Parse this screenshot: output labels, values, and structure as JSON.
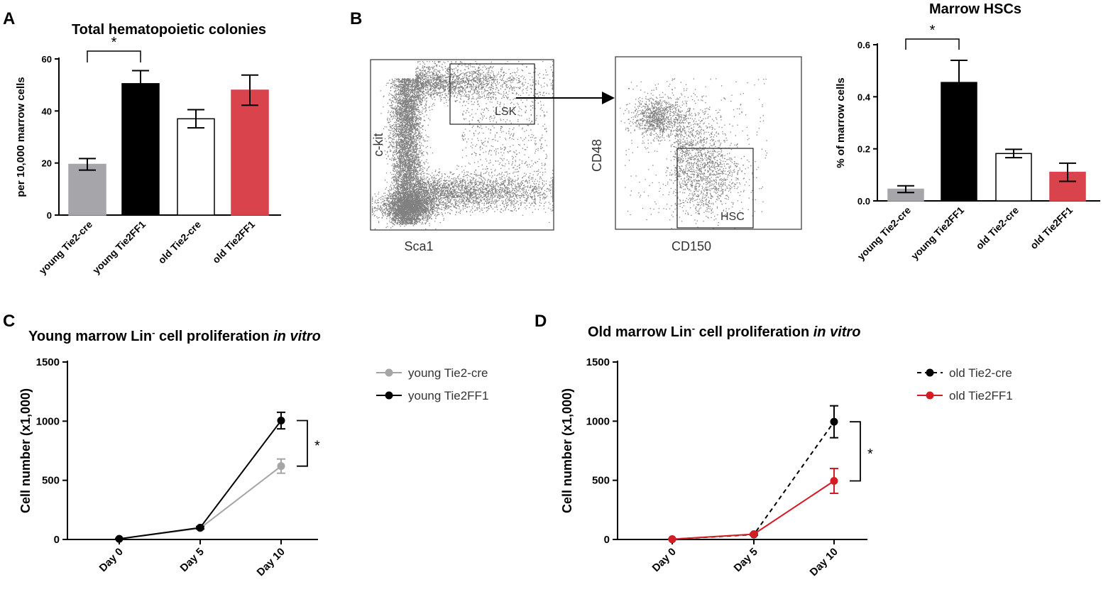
{
  "panels": {
    "a": {
      "letter": "A"
    },
    "b": {
      "letter": "B"
    },
    "c": {
      "letter": "C"
    },
    "d": {
      "letter": "D"
    }
  },
  "flow": {
    "plot1": {
      "ylabel": "c-kit",
      "xlabel": "Sca1",
      "gate": "LSK"
    },
    "plot2": {
      "ylabel": "CD48",
      "xlabel": "CD150",
      "gate": "HSC"
    }
  },
  "colors": {
    "grey": "#a6a5aa",
    "black": "#000000",
    "white": "#ffffff",
    "red": "#d9434b",
    "red_line": "#d41c24",
    "light_grey_line": "#a5a5a5",
    "scatter": "#808080"
  },
  "chart_data": [
    {
      "id": "A",
      "type": "bar",
      "title": "Total hematopoietic colonies",
      "ylabel": "per 10,000 marrow cells",
      "xlabel": "",
      "categories": [
        "young Tie2-cre",
        "young Tie2FF1",
        "old Tie2-cre",
        "old Tie2FF1"
      ],
      "values": [
        19.5,
        50.5,
        37,
        48
      ],
      "errors": [
        2.2,
        5,
        3.5,
        5.8
      ],
      "bar_colors": [
        "#a6a5aa",
        "#000000",
        "#ffffff",
        "#d9434b"
      ],
      "ylim": [
        0,
        60
      ],
      "yticks": [
        "0",
        "20",
        "40",
        "60"
      ],
      "significance": {
        "pair": [
          0,
          1
        ],
        "label": "*"
      }
    },
    {
      "id": "B",
      "type": "bar",
      "title": "Marrow HSCs",
      "ylabel": "% of marrow cells",
      "xlabel": "",
      "categories": [
        "young Tie2-cre",
        "young Tie2FF1",
        "old Tie2-cre",
        "old Tie2FF1"
      ],
      "values": [
        0.045,
        0.455,
        0.182,
        0.11
      ],
      "errors": [
        0.013,
        0.085,
        0.016,
        0.035
      ],
      "bar_colors": [
        "#a6a5aa",
        "#000000",
        "#ffffff",
        "#d9434b"
      ],
      "ylim": [
        0,
        0.6
      ],
      "yticks": [
        "0.0",
        "0.2",
        "0.4",
        "0.6"
      ],
      "significance": {
        "pair": [
          0,
          1
        ],
        "label": "*"
      }
    },
    {
      "id": "C",
      "type": "line",
      "title_main": "Young marrow Lin",
      "title_sup": "-",
      "title_mid": " cell proliferation ",
      "title_em": "in vitro",
      "ylabel": "Cell number (x1,000)",
      "xlabel": "",
      "categories": [
        "Day 0",
        "Day 5",
        "Day 10"
      ],
      "ylim": [
        0,
        1500
      ],
      "yticks": [
        "0",
        "500",
        "1000",
        "1500"
      ],
      "series": [
        {
          "name": "young Tie2-cre",
          "values": [
            5,
            95,
            620
          ],
          "errors": [
            3,
            10,
            60
          ],
          "color": "#a5a5a5",
          "dashed": false
        },
        {
          "name": "young Tie2FF1",
          "values": [
            5,
            100,
            1005
          ],
          "errors": [
            3,
            10,
            70
          ],
          "color": "#000000",
          "dashed": false
        }
      ],
      "significance": {
        "label": "*"
      }
    },
    {
      "id": "D",
      "type": "line",
      "title_main": "Old marrow Lin",
      "title_sup": "-",
      "title_mid": " cell proliferation ",
      "title_em": "in vitro",
      "ylabel": "Cell number (x1,000)",
      "xlabel": "",
      "categories": [
        "Day 0",
        "Day 5",
        "Day 10"
      ],
      "ylim": [
        0,
        1500
      ],
      "yticks": [
        "0",
        "500",
        "1000",
        "1500"
      ],
      "series": [
        {
          "name": "old Tie2-cre",
          "values": [
            2,
            42,
            995
          ],
          "errors": [
            2,
            6,
            135
          ],
          "color": "#000000",
          "dashed": true
        },
        {
          "name": "old Tie2FF1",
          "values": [
            2,
            45,
            495
          ],
          "errors": [
            2,
            6,
            105
          ],
          "color": "#d41c24",
          "dashed": false
        }
      ],
      "significance": {
        "label": "*"
      }
    }
  ]
}
